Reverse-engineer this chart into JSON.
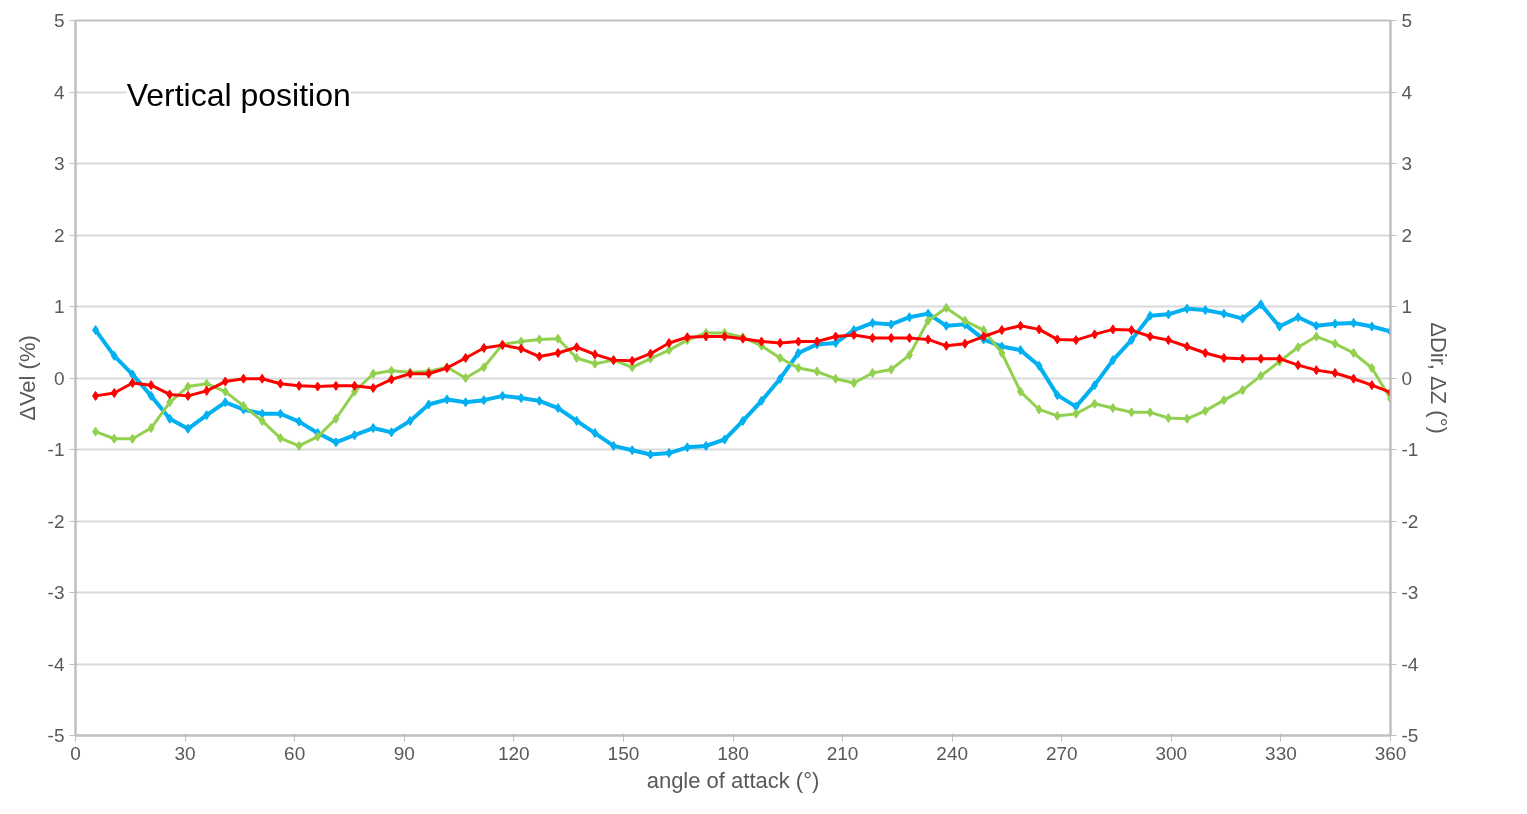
{
  "chart_data": {
    "type": "line",
    "annotations": [
      "Vertical position"
    ],
    "xlabel": "angle of attack (°)",
    "ylabel": "ΔVel (%)",
    "y2label": "ΔDir, ΔZ (°)",
    "x": [
      5.5,
      10.6,
      15.6,
      20.7,
      25.8,
      30.8,
      35.9,
      41.0,
      46.0,
      51.1,
      56.1,
      61.2,
      66.3,
      71.3,
      76.4,
      81.5,
      86.5,
      91.6,
      96.7,
      101.7,
      106.8,
      111.8,
      116.9,
      122.0,
      127.0,
      132.1,
      137.2,
      142.2,
      147.3,
      152.4,
      157.4,
      162.5,
      167.5,
      172.6,
      177.7,
      182.7,
      187.8,
      192.9,
      197.9,
      203.0,
      208.1,
      213.1,
      218.2,
      223.3,
      228.3,
      233.4,
      238.4,
      243.5,
      248.6,
      253.6,
      258.7,
      263.8,
      268.8,
      273.9,
      279.0,
      284.0,
      289.1,
      294.2,
      299.2,
      304.3,
      309.3,
      314.4,
      319.5,
      324.5,
      329.6,
      334.7,
      339.7,
      344.8,
      349.9,
      354.9,
      360.0
    ],
    "series": [
      {
        "color": "#00b0f0",
        "values": [
          0.67,
          0.31,
          0.05,
          -0.25,
          -0.57,
          -0.71,
          -0.52,
          -0.34,
          -0.44,
          -0.5,
          -0.5,
          -0.61,
          -0.77,
          -0.9,
          -0.8,
          -0.7,
          -0.76,
          -0.6,
          -0.37,
          -0.3,
          -0.34,
          -0.31,
          -0.25,
          -0.28,
          -0.32,
          -0.42,
          -0.6,
          -0.77,
          -0.95,
          -1.01,
          -1.07,
          -1.05,
          -0.97,
          -0.95,
          -0.86,
          -0.6,
          -0.32,
          -0.01,
          0.35,
          0.47,
          0.49,
          0.67,
          0.77,
          0.75,
          0.85,
          0.9,
          0.73,
          0.75,
          0.54,
          0.44,
          0.39,
          0.17,
          -0.24,
          -0.4,
          -0.1,
          0.25,
          0.53,
          0.87,
          0.89,
          0.97,
          0.95,
          0.9,
          0.83,
          1.03,
          0.72,
          0.85,
          0.73,
          0.76,
          0.77,
          0.72,
          0.65
        ]
      },
      {
        "color": "#92d050",
        "axis": "y2",
        "values": [
          -0.75,
          -0.85,
          -0.85,
          -0.7,
          -0.34,
          -0.12,
          -0.08,
          -0.19,
          -0.39,
          -0.6,
          -0.84,
          -0.95,
          -0.82,
          -0.57,
          -0.19,
          0.06,
          0.1,
          0.08,
          0.09,
          0.15,
          0.0,
          0.15,
          0.47,
          0.51,
          0.54,
          0.55,
          0.28,
          0.2,
          0.25,
          0.15,
          0.27,
          0.39,
          0.53,
          0.63,
          0.63,
          0.57,
          0.45,
          0.28,
          0.14,
          0.09,
          -0.01,
          -0.07,
          0.07,
          0.12,
          0.32,
          0.8,
          0.98,
          0.8,
          0.67,
          0.35,
          -0.19,
          -0.44,
          -0.53,
          -0.5,
          -0.36,
          -0.42,
          -0.48,
          -0.48,
          -0.56,
          -0.57,
          -0.46,
          -0.31,
          -0.17,
          0.03,
          0.23,
          0.43,
          0.58,
          0.48,
          0.35,
          0.14,
          -0.29
        ]
      },
      {
        "color": "#ff0000",
        "axis": "y2",
        "values": [
          -0.25,
          -0.21,
          -0.07,
          -0.1,
          -0.23,
          -0.25,
          -0.18,
          -0.05,
          -0.01,
          -0.01,
          -0.08,
          -0.11,
          -0.12,
          -0.11,
          -0.11,
          -0.14,
          -0.02,
          0.06,
          0.06,
          0.14,
          0.28,
          0.42,
          0.46,
          0.41,
          0.3,
          0.35,
          0.43,
          0.33,
          0.25,
          0.24,
          0.34,
          0.49,
          0.57,
          0.58,
          0.58,
          0.55,
          0.51,
          0.49,
          0.51,
          0.51,
          0.58,
          0.6,
          0.56,
          0.56,
          0.56,
          0.54,
          0.45,
          0.48,
          0.58,
          0.67,
          0.73,
          0.68,
          0.54,
          0.53,
          0.61,
          0.68,
          0.67,
          0.58,
          0.53,
          0.44,
          0.35,
          0.28,
          0.27,
          0.27,
          0.27,
          0.18,
          0.11,
          0.07,
          -0.01,
          -0.1,
          -0.2
        ]
      }
    ],
    "xlim": [
      0,
      360
    ],
    "xticks": [
      0,
      30,
      60,
      90,
      120,
      150,
      180,
      210,
      240,
      270,
      300,
      330,
      360
    ],
    "ylim": [
      -5,
      5
    ],
    "yticks": [
      -5,
      -4,
      -3,
      -2,
      -1,
      0,
      1,
      2,
      3,
      4,
      5
    ],
    "y2lim": [
      -5,
      5
    ],
    "y2ticks": [
      -5,
      -4,
      -3,
      -2,
      -1,
      0,
      1,
      2,
      3,
      4,
      5
    ],
    "grid": "y",
    "marker": "diamond",
    "line_style": "solid"
  }
}
